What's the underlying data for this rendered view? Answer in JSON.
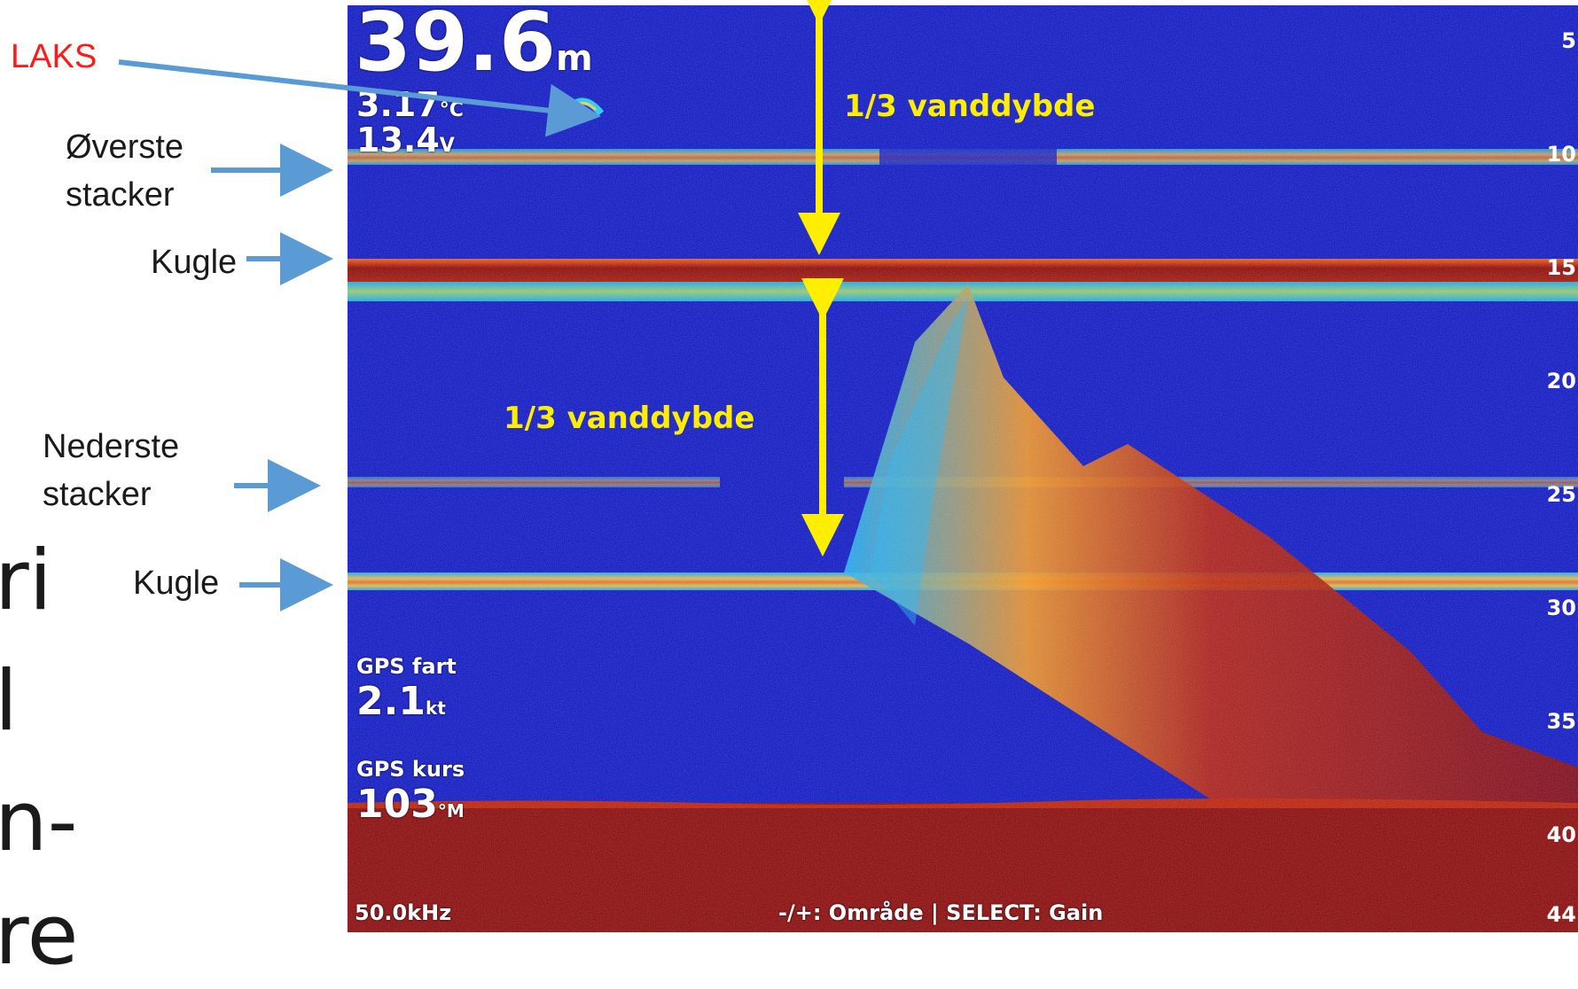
{
  "annotations": {
    "laks": "LAKS",
    "overste_line1": "Øverste",
    "overste_line2": "stacker",
    "kugle_top": "Kugle",
    "nederste_line1": "Nederste",
    "nederste_line2": "stacker",
    "kugle_bottom": "Kugle",
    "third_top": "1/3 vanddybde",
    "third_bottom": "1/3 vanddybde"
  },
  "slide_fragments": [
    "ri",
    "l",
    "n-",
    "re"
  ],
  "sonar": {
    "depth_value": "39.6",
    "depth_unit": "m",
    "temperature": "3.17",
    "temperature_unit": "°C",
    "voltage": "13.4",
    "voltage_unit": "V",
    "gps_speed_label": "GPS fart",
    "gps_speed_value": "2.1",
    "gps_speed_unit": "kt",
    "gps_course_label": "GPS kurs",
    "gps_course_value": "103",
    "gps_course_unit": "°M",
    "frequency": "50.0kHz",
    "help_text": "-/+: Område | SELECT: Gain",
    "scale_ticks": [
      "5",
      "10",
      "15",
      "20",
      "25",
      "30",
      "35",
      "40",
      "44"
    ]
  },
  "colors": {
    "water": "#0610c9",
    "strong_echo": "#8b0000",
    "arrow_blue": "#5b9bd5",
    "arrow_yellow": "#ffee00",
    "laks_red": "#ff1a1a"
  }
}
